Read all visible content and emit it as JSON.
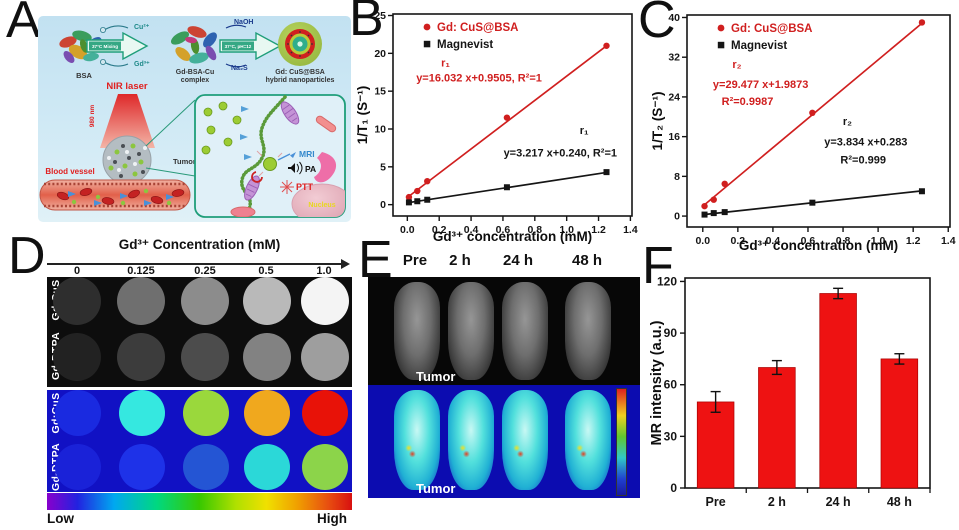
{
  "figure": {
    "background": "#ffffff"
  },
  "accents": {
    "red": "#d01f1f",
    "black": "#151515",
    "teal": "#1f9e7a",
    "bar_red": "#ee1212"
  },
  "panels": {
    "a": {
      "label": "A",
      "bsa_label": "BSA",
      "arrow1": {
        "top": "Cu²⁺",
        "inside": "37°C Mixing",
        "bottom": "Gd³⁺"
      },
      "complex_label_1": "Gd-BSA-Cu",
      "complex_label_2": "complex",
      "np_label_1": "Gd: CuS@BSA",
      "arrow2": {
        "top": "NaOH",
        "inside": "37°C, pH=12",
        "bottom": "Na₂S"
      },
      "np_label_2": "hybrid nanoparticles",
      "nir_laser": "NIR laser",
      "wavelength": "980 nm",
      "blood_vessel": "Blood vessel",
      "tumor": "Tumor",
      "mri": "MRI",
      "pa": "PA",
      "ptt": "PTT",
      "nucleus": "Nucleus"
    },
    "b": {
      "label": "B"
    },
    "c": {
      "label": "C"
    },
    "d": {
      "label": "D",
      "title": "Gd³⁺ Concentration (mM)",
      "concentrations": [
        "0",
        "0.125",
        "0.25",
        "0.5",
        "1.0"
      ],
      "row_labels": [
        "Gd:CuS",
        "Gd-DTPA"
      ],
      "low": "Low",
      "high": "High",
      "gray_rows": [
        [
          "#2e2e2e",
          "#6f6f6f",
          "#8c8c8c",
          "#b9b9b9",
          "#f4f4f4"
        ],
        [
          "#222222",
          "#3c3c3c",
          "#4c4c4c",
          "#828282",
          "#9e9e9e"
        ]
      ],
      "color_rows": [
        [
          "#1a2ae0",
          "#35e8e0",
          "#9ad83c",
          "#f0a81e",
          "#e81208"
        ],
        [
          "#1a22d8",
          "#1e32e8",
          "#2455d4",
          "#2bd8d8",
          "#8cd44a"
        ]
      ]
    },
    "e": {
      "label": "E",
      "timepoints": [
        "Pre",
        "2 h",
        "24 h",
        "48 h"
      ],
      "tumor_top": "Tumor",
      "tumor_bottom": "Tumor"
    },
    "f": {
      "label": "F"
    }
  },
  "chart_data": [
    {
      "type": "scatter",
      "panel": "B",
      "xlabel": "Gd³⁺ concentration (mM)",
      "ylabel": "1/T₁ (S⁻¹)",
      "xlim": [
        -0.09,
        1.41
      ],
      "ylim": [
        -1.5,
        25.2
      ],
      "x": [
        0.01,
        0.0625,
        0.125,
        0.625,
        1.25
      ],
      "xticks": {
        "values": [
          0.0,
          0.2,
          0.4,
          0.6,
          0.8,
          1.0,
          1.2,
          1.4
        ],
        "labels": [
          "0.0",
          "0.2",
          "0.4",
          "0.6",
          "0.8",
          "1.0",
          "1.2",
          "1.4"
        ]
      },
      "yticks": {
        "values": [
          0,
          5,
          10,
          15,
          20,
          25
        ],
        "labels": [
          "0",
          "5",
          "10",
          "15",
          "20",
          "25"
        ]
      },
      "series": [
        {
          "name": "Gd: CuS@BSA",
          "color": "#d01f1f",
          "marker": "circle",
          "y": [
            1.0,
            1.8,
            3.1,
            11.5,
            21.0
          ],
          "fit": {
            "slope": 16.032,
            "intercept": 0.9505
          }
        },
        {
          "name": "Magnevist",
          "color": "#151515",
          "marker": "square",
          "y": [
            0.3,
            0.45,
            0.65,
            2.3,
            4.3
          ],
          "fit": {
            "slope": 3.217,
            "intercept": 0.24
          }
        }
      ],
      "annotations": [
        {
          "text": "r₁",
          "fx": 0.22,
          "fy": 0.26,
          "color": "#d01f1f"
        },
        {
          "text": "y=16.032 x+0.9505, R²=1",
          "fx": 0.36,
          "fy": 0.335,
          "color": "#d01f1f"
        },
        {
          "text": "r₁",
          "fx": 0.8,
          "fy": 0.595,
          "color": "#151515"
        },
        {
          "text": "y=3.217 x+0.240, R²=1",
          "fx": 0.7,
          "fy": 0.705,
          "color": "#151515"
        }
      ]
    },
    {
      "type": "scatter",
      "panel": "C",
      "xlabel": "Gd³⁺ concentration (mM)",
      "ylabel": "1/T₂ (S⁻¹)",
      "xlim": [
        -0.09,
        1.41
      ],
      "ylim": [
        -2.2,
        40.5
      ],
      "x": [
        0.01,
        0.0625,
        0.125,
        0.625,
        1.25
      ],
      "xticks": {
        "values": [
          0.0,
          0.2,
          0.4,
          0.6,
          0.8,
          1.0,
          1.2,
          1.4
        ],
        "labels": [
          "0.0",
          "0.2",
          "0.4",
          "0.6",
          "0.8",
          "1.0",
          "1.2",
          "1.4"
        ]
      },
      "yticks": {
        "values": [
          0,
          8,
          16,
          24,
          32,
          40
        ],
        "labels": [
          "0",
          "8",
          "16",
          "24",
          "32",
          "40"
        ]
      },
      "series": [
        {
          "name": "Gd: CuS@BSA",
          "color": "#d01f1f",
          "marker": "circle",
          "y": [
            2.0,
            3.3,
            6.5,
            20.8,
            39.0
          ],
          "fit": {
            "slope": 29.477,
            "intercept": 1.9873
          }
        },
        {
          "name": "Magnevist",
          "color": "#151515",
          "marker": "square",
          "y": [
            0.3,
            0.6,
            0.8,
            2.7,
            5.0
          ],
          "fit": {
            "slope": 3.834,
            "intercept": 0.283
          }
        }
      ],
      "annotations": [
        {
          "text": "r₂",
          "fx": 0.19,
          "fy": 0.25,
          "color": "#d01f1f"
        },
        {
          "text": "y=29.477 x+1.9873",
          "fx": 0.28,
          "fy": 0.345,
          "color": "#d01f1f"
        },
        {
          "text": "R²=0.9987",
          "fx": 0.23,
          "fy": 0.425,
          "color": "#d01f1f"
        },
        {
          "text": "r₂",
          "fx": 0.61,
          "fy": 0.52,
          "color": "#151515"
        },
        {
          "text": "y=3.834 x+0.283",
          "fx": 0.68,
          "fy": 0.615,
          "color": "#151515"
        },
        {
          "text": "R²=0.999",
          "fx": 0.67,
          "fy": 0.7,
          "color": "#151515"
        }
      ]
    },
    {
      "type": "bar",
      "panel": "F",
      "categories": [
        "Pre",
        "2 h",
        "24 h",
        "48 h"
      ],
      "values": [
        50,
        70,
        113,
        75
      ],
      "errors": [
        6,
        4,
        3,
        3
      ],
      "bar_color": "#ee1212",
      "ylabel": "MR intensity (a.u.)",
      "xlabel": "",
      "ylim": [
        0,
        122
      ],
      "yticks": {
        "values": [
          0,
          30,
          60,
          90,
          120
        ],
        "labels": [
          "0",
          "30",
          "60",
          "90",
          "120"
        ]
      }
    }
  ]
}
